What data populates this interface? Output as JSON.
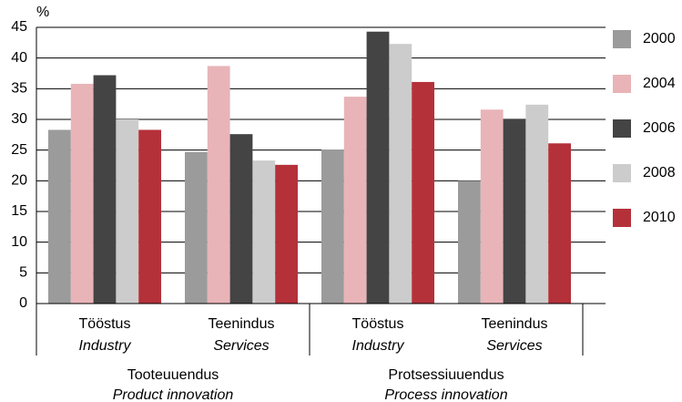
{
  "chart_data": {
    "type": "bar",
    "y_label": "%",
    "categories": [
      "Tööstus",
      "Teenindus",
      "Tööstus",
      "Teenindus"
    ],
    "categories_en": [
      "Industry",
      "Services",
      "Industry",
      "Services"
    ],
    "groups": [
      {
        "label": "Tooteuuendus",
        "label_en": "Product innovation"
      },
      {
        "label": "Protsessiuuendus",
        "label_en": "Process innovation"
      }
    ],
    "series": [
      {
        "name": "2000",
        "color": "#9b9b9b",
        "values": [
          28.3,
          24.7,
          25.1,
          20
        ]
      },
      {
        "name": "2004",
        "color": "#e8b4b8",
        "values": [
          35.8,
          38.7,
          33.7,
          31.6
        ]
      },
      {
        "name": "2006",
        "color": "#444444",
        "values": [
          37.2,
          27.6,
          44.3,
          30
        ]
      },
      {
        "name": "2008",
        "color": "#cccccc",
        "values": [
          30,
          23.3,
          42.3,
          32.4
        ]
      },
      {
        "name": "2010",
        "color": "#b5313a",
        "values": [
          28.3,
          22.6,
          36.1,
          26.1
        ]
      }
    ],
    "ylim": [
      0,
      45
    ],
    "yticks": [
      0,
      5,
      10,
      15,
      20,
      25,
      30,
      35,
      40,
      45
    ],
    "grid": true,
    "legend": "right"
  }
}
